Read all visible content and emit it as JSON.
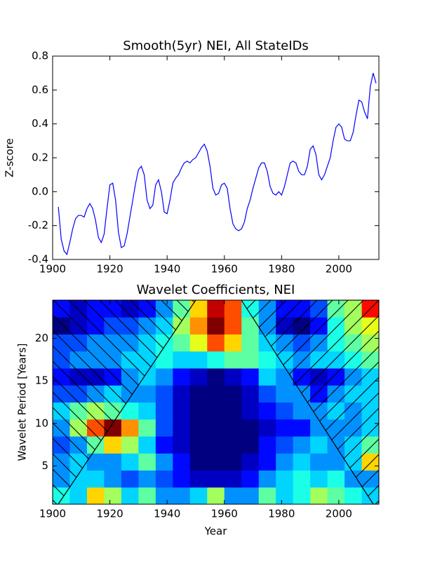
{
  "chart_data": [
    {
      "type": "line",
      "title": "Smooth(5yr) NEI, All StateIDs",
      "y_label": "Z-score",
      "color": "#0000ff",
      "x": [
        1902,
        1903,
        1904,
        1905,
        1906,
        1907,
        1908,
        1909,
        1910,
        1911,
        1912,
        1913,
        1914,
        1915,
        1916,
        1917,
        1918,
        1919,
        1920,
        1921,
        1922,
        1923,
        1924,
        1925,
        1926,
        1927,
        1928,
        1929,
        1930,
        1931,
        1932,
        1933,
        1934,
        1935,
        1936,
        1937,
        1938,
        1939,
        1940,
        1941,
        1942,
        1943,
        1944,
        1945,
        1946,
        1947,
        1948,
        1949,
        1950,
        1951,
        1952,
        1953,
        1954,
        1955,
        1956,
        1957,
        1958,
        1959,
        1960,
        1961,
        1962,
        1963,
        1964,
        1965,
        1966,
        1967,
        1968,
        1969,
        1970,
        1971,
        1972,
        1973,
        1974,
        1975,
        1976,
        1977,
        1978,
        1979,
        1980,
        1981,
        1982,
        1983,
        1984,
        1985,
        1986,
        1987,
        1988,
        1989,
        1990,
        1991,
        1992,
        1993,
        1994,
        1995,
        1996,
        1997,
        1998,
        1999,
        2000,
        2001,
        2002,
        2003,
        2004,
        2005,
        2006,
        2007,
        2008,
        2009,
        2010,
        2011,
        2012,
        2013
      ],
      "values": [
        -0.09,
        -0.28,
        -0.35,
        -0.37,
        -0.3,
        -0.22,
        -0.16,
        -0.14,
        -0.14,
        -0.15,
        -0.1,
        -0.07,
        -0.1,
        -0.17,
        -0.27,
        -0.3,
        -0.25,
        -0.1,
        0.04,
        0.05,
        -0.05,
        -0.24,
        -0.33,
        -0.32,
        -0.25,
        -0.15,
        -0.05,
        0.05,
        0.13,
        0.15,
        0.1,
        -0.05,
        -0.1,
        -0.08,
        0.04,
        0.07,
        0.0,
        -0.12,
        -0.13,
        -0.05,
        0.05,
        0.08,
        0.1,
        0.14,
        0.17,
        0.18,
        0.17,
        0.19,
        0.2,
        0.23,
        0.26,
        0.28,
        0.24,
        0.15,
        0.02,
        -0.02,
        -0.01,
        0.04,
        0.05,
        0.02,
        -0.1,
        -0.19,
        -0.22,
        -0.23,
        -0.22,
        -0.18,
        -0.1,
        -0.05,
        0.02,
        0.08,
        0.14,
        0.17,
        0.17,
        0.12,
        0.03,
        -0.01,
        -0.02,
        0.0,
        -0.02,
        0.03,
        0.1,
        0.17,
        0.18,
        0.17,
        0.12,
        0.1,
        0.1,
        0.15,
        0.25,
        0.27,
        0.22,
        0.1,
        0.07,
        0.1,
        0.15,
        0.2,
        0.3,
        0.38,
        0.4,
        0.38,
        0.31,
        0.3,
        0.3,
        0.35,
        0.45,
        0.54,
        0.53,
        0.47,
        0.43,
        0.62,
        0.7,
        0.64
      ],
      "xlim": [
        1900,
        2014
      ],
      "xticks": [
        1900,
        1920,
        1940,
        1960,
        1980,
        2000
      ],
      "ylim": [
        -0.4,
        0.8
      ],
      "yticks": [
        -0.4,
        -0.2,
        {
          "value": 0,
          "label": "0.0"
        },
        0.2,
        0.4,
        0.6,
        0.8
      ]
    },
    {
      "type": "contour",
      "title": "Wavelet Coefficients, NEI",
      "x_label": "Year",
      "y_label": "Wavelet Period [Years]",
      "colormap": "jet",
      "x": [
        1903,
        1909,
        1915,
        1921,
        1927,
        1933,
        1939,
        1945,
        1951,
        1957,
        1963,
        1969,
        1975,
        1981,
        1987,
        1993,
        1999,
        2005,
        2011
      ],
      "y": [
        1.5,
        3.5,
        5.5,
        7.5,
        9.5,
        11.5,
        13.5,
        15.5,
        17.5,
        19.5,
        21.5,
        23.5
      ],
      "z": [
        [
          0.4,
          0.35,
          0.6,
          0.5,
          0.35,
          0.45,
          0.3,
          0.3,
          0.35,
          0.5,
          0.3,
          0.3,
          0.45,
          0.35,
          0.4,
          0.5,
          0.45,
          0.4,
          0.35
        ],
        [
          0.3,
          0.35,
          0.35,
          0.3,
          0.25,
          0.3,
          0.25,
          0.2,
          0.15,
          0.15,
          0.15,
          0.2,
          0.3,
          0.35,
          0.4,
          0.35,
          0.4,
          0.3,
          0.3
        ],
        [
          0.3,
          0.35,
          0.3,
          0.3,
          0.35,
          0.45,
          0.3,
          0.2,
          0.1,
          0.1,
          0.1,
          0.15,
          0.2,
          0.3,
          0.35,
          0.3,
          0.3,
          0.35,
          0.6
        ],
        [
          0.25,
          0.3,
          0.45,
          0.6,
          0.5,
          0.35,
          0.2,
          0.15,
          0.1,
          0.1,
          0.1,
          0.1,
          0.2,
          0.25,
          0.3,
          0.35,
          0.3,
          0.35,
          0.45
        ],
        [
          0.3,
          0.5,
          0.7,
          0.85,
          0.65,
          0.45,
          0.25,
          0.15,
          0.1,
          0.1,
          0.1,
          0.1,
          0.15,
          0.2,
          0.2,
          0.3,
          0.3,
          0.3,
          0.35
        ],
        [
          0.35,
          0.45,
          0.5,
          0.45,
          0.4,
          0.35,
          0.25,
          0.15,
          0.1,
          0.1,
          0.1,
          0.15,
          0.2,
          0.25,
          0.3,
          0.3,
          0.35,
          0.3,
          0.35
        ],
        [
          0.25,
          0.25,
          0.3,
          0.35,
          0.3,
          0.3,
          0.25,
          0.15,
          0.1,
          0.1,
          0.1,
          0.15,
          0.25,
          0.3,
          0.3,
          0.2,
          0.3,
          0.35,
          0.35
        ],
        [
          0.2,
          0.15,
          0.15,
          0.2,
          0.3,
          0.35,
          0.3,
          0.2,
          0.15,
          0.1,
          0.15,
          0.2,
          0.35,
          0.3,
          0.2,
          0.15,
          0.2,
          0.3,
          0.35
        ],
        [
          0.25,
          0.3,
          0.3,
          0.3,
          0.35,
          0.35,
          0.4,
          0.35,
          0.35,
          0.4,
          0.45,
          0.45,
          0.4,
          0.35,
          0.3,
          0.35,
          0.35,
          0.4,
          0.45
        ],
        [
          0.25,
          0.25,
          0.3,
          0.3,
          0.3,
          0.35,
          0.4,
          0.45,
          0.55,
          0.7,
          0.6,
          0.45,
          0.35,
          0.3,
          0.25,
          0.3,
          0.4,
          0.45,
          0.5
        ],
        [
          0.1,
          0.15,
          0.2,
          0.25,
          0.25,
          0.3,
          0.35,
          0.5,
          0.65,
          0.85,
          0.7,
          0.45,
          0.3,
          0.15,
          0.1,
          0.2,
          0.4,
          0.5,
          0.55
        ],
        [
          0.2,
          0.15,
          0.2,
          0.2,
          0.15,
          0.2,
          0.3,
          0.45,
          0.6,
          0.8,
          0.7,
          0.4,
          0.3,
          0.2,
          0.2,
          0.25,
          0.45,
          0.5,
          0.75
        ]
      ],
      "xlim": [
        1900,
        2014
      ],
      "xticks": [
        1900,
        1920,
        1940,
        1960,
        1980,
        2000
      ],
      "ylim": [
        0.5,
        24.5
      ],
      "yticks": [
        5,
        10,
        15,
        20
      ]
    }
  ]
}
